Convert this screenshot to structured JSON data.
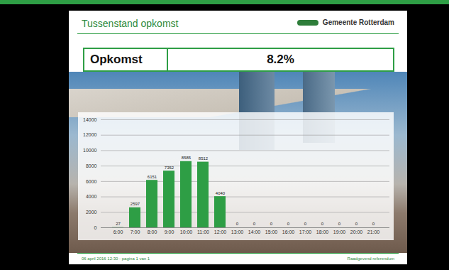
{
  "header": {
    "title": "Tussenstand opkomst",
    "logo": "Gemeente Rotterdam"
  },
  "summary": {
    "label": "Opkomst",
    "value": "8.2%"
  },
  "chart_data": {
    "type": "bar",
    "categories": [
      "6:00",
      "7:00",
      "8:00",
      "9:00",
      "10:00",
      "11:00",
      "12:00",
      "13:00",
      "14:00",
      "15:00",
      "16:00",
      "17:00",
      "18:00",
      "19:00",
      "20:00",
      "21:00"
    ],
    "values": [
      27,
      2597,
      6151,
      7352,
      8585,
      8512,
      4040,
      0,
      0,
      0,
      0,
      0,
      0,
      0,
      0,
      0
    ],
    "color": "#2e9e45",
    "ylim": [
      0,
      14000
    ],
    "yticks": [
      0,
      2000,
      4000,
      6000,
      8000,
      10000,
      12000,
      14000
    ],
    "grid": true,
    "data_labels": true
  },
  "footer": {
    "left": "06 april 2016 12:30 - pagina 1 van 1",
    "right": "Raadgevend referendum"
  }
}
